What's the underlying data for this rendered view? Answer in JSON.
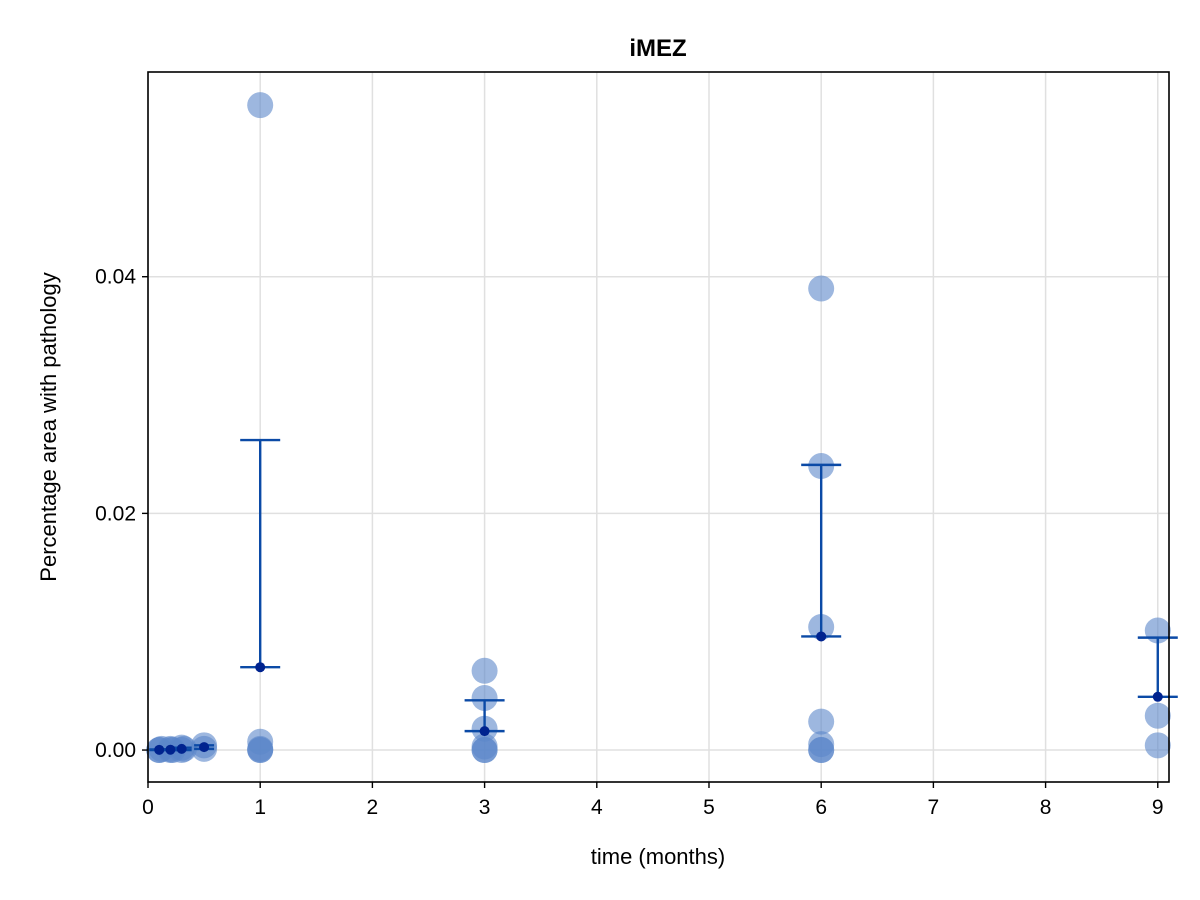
{
  "chart_data": {
    "type": "scatter",
    "title": "iMEZ",
    "xlabel": "time (months)",
    "ylabel": "Percentage area with pathology",
    "xlim": [
      0,
      9.1
    ],
    "ylim": [
      -0.0027,
      0.0573
    ],
    "xticks": [
      0,
      1,
      2,
      3,
      4,
      5,
      6,
      7,
      8,
      9
    ],
    "yticks": [
      0.0,
      0.02,
      0.04
    ],
    "ytick_labels": [
      "0.00",
      "0.02",
      "0.04"
    ],
    "grid": true,
    "colors": {
      "points": "#5b87c9",
      "error": "#0b4aa6",
      "mean": "#00238f"
    },
    "points": [
      {
        "x": 0.1,
        "y": 0.0
      },
      {
        "x": 0.1,
        "y": 0.0
      },
      {
        "x": 0.12,
        "y": 0.0001
      },
      {
        "x": 0.2,
        "y": 0.0
      },
      {
        "x": 0.2,
        "y": 0.0001
      },
      {
        "x": 0.22,
        "y": 0.0
      },
      {
        "x": 0.3,
        "y": 0.0002
      },
      {
        "x": 0.3,
        "y": 0.0
      },
      {
        "x": 0.32,
        "y": 0.0001
      },
      {
        "x": 0.5,
        "y": 0.0001
      },
      {
        "x": 0.5,
        "y": 0.0004
      },
      {
        "x": 1,
        "y": 0.0545
      },
      {
        "x": 1,
        "y": 0.0007
      },
      {
        "x": 1,
        "y": 0.0001
      },
      {
        "x": 1,
        "y": 0.0
      },
      {
        "x": 1,
        "y": 0.0
      },
      {
        "x": 3,
        "y": 0.0067
      },
      {
        "x": 3,
        "y": 0.0044
      },
      {
        "x": 3,
        "y": 0.0018
      },
      {
        "x": 3,
        "y": 0.0003
      },
      {
        "x": 3,
        "y": 0.0
      },
      {
        "x": 3,
        "y": 0.0
      },
      {
        "x": 6,
        "y": 0.039
      },
      {
        "x": 6,
        "y": 0.024
      },
      {
        "x": 6,
        "y": 0.0104
      },
      {
        "x": 6,
        "y": 0.0024
      },
      {
        "x": 6,
        "y": 0.0005
      },
      {
        "x": 6,
        "y": 0.0
      },
      {
        "x": 6,
        "y": 0.0
      },
      {
        "x": 9,
        "y": 0.0101
      },
      {
        "x": 9,
        "y": 0.0029
      },
      {
        "x": 9,
        "y": 0.0004
      }
    ],
    "summary": [
      {
        "x": 0.1,
        "mean": 2e-05,
        "low": 0.0,
        "high": 5e-05
      },
      {
        "x": 0.2,
        "mean": 3e-05,
        "low": 0.0,
        "high": 7e-05
      },
      {
        "x": 0.3,
        "mean": 0.0001,
        "low": 0.0,
        "high": 0.0002
      },
      {
        "x": 0.5,
        "mean": 0.00025,
        "low": 0.0001,
        "high": 0.0004
      },
      {
        "x": 1,
        "mean": 0.007,
        "low": 0.007,
        "high": 0.0262
      },
      {
        "x": 3,
        "mean": 0.0016,
        "low": 0.0016,
        "high": 0.0042
      },
      {
        "x": 6,
        "mean": 0.0096,
        "low": 0.0096,
        "high": 0.0241
      },
      {
        "x": 9,
        "mean": 0.0045,
        "low": 0.0045,
        "high": 0.0095
      }
    ]
  }
}
